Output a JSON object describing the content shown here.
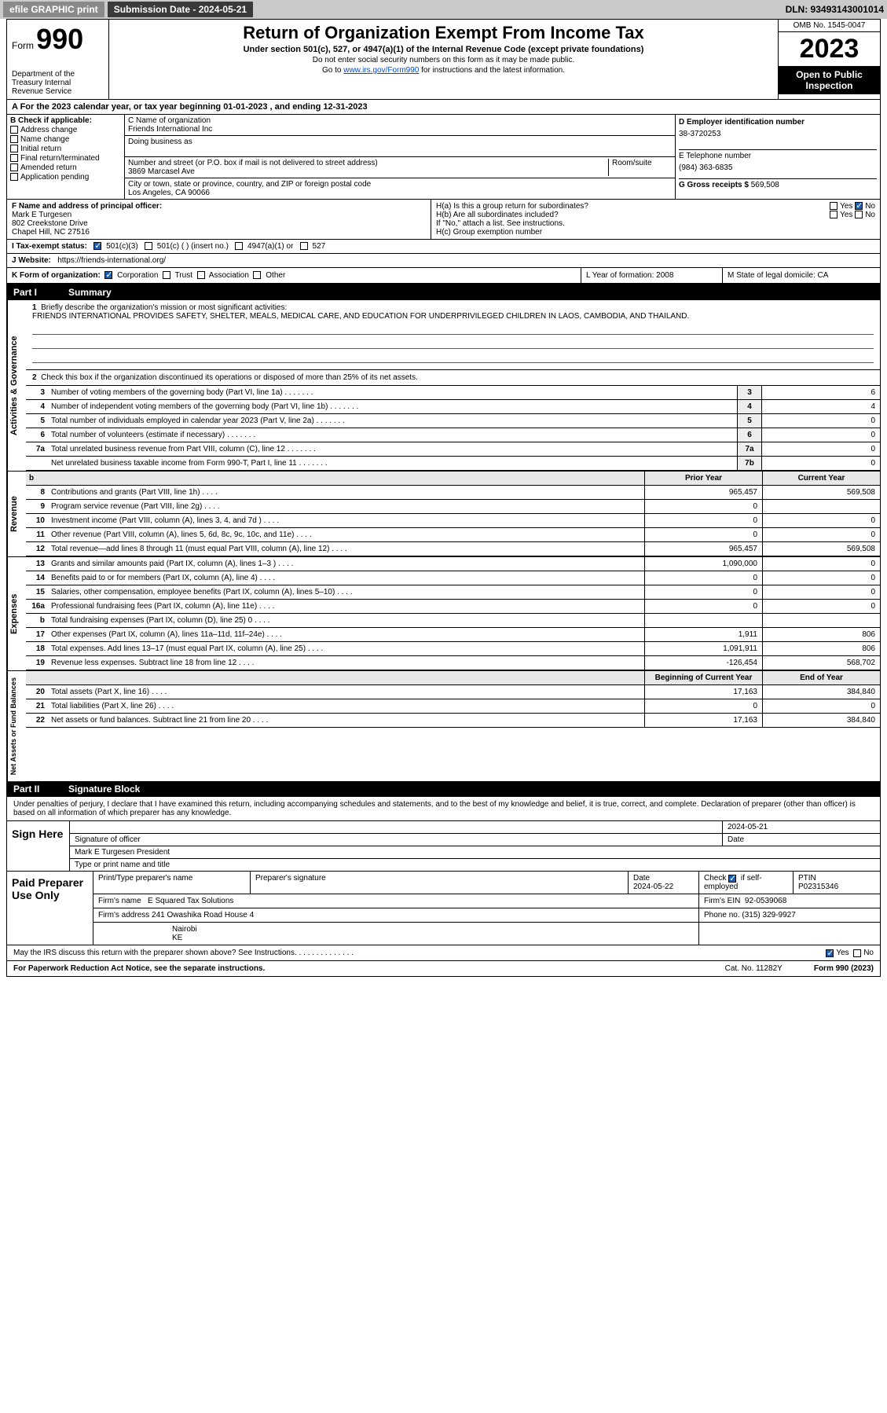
{
  "topbar": {
    "efile": "efile GRAPHIC print",
    "sub_label": "Submission Date - 2024-05-21",
    "dln": "DLN: 93493143001014"
  },
  "header": {
    "form_label": "Form",
    "form_number": "990",
    "title": "Return of Organization Exempt From Income Tax",
    "subtitle": "Under section 501(c), 527, or 4947(a)(1) of the Internal Revenue Code (except private foundations)",
    "note1": "Do not enter social security numbers on this form as it may be made public.",
    "note2_prefix": "Go to ",
    "note2_link": "www.irs.gov/Form990",
    "note2_suffix": " for instructions and the latest information.",
    "omb": "OMB No. 1545-0047",
    "year": "2023",
    "open_public": "Open to Public Inspection",
    "dept": "Department of the Treasury Internal Revenue Service"
  },
  "period": "A For the 2023 calendar year, or tax year beginning 01-01-2023   , and ending 12-31-2023",
  "box_b": {
    "label": "B Check if applicable:",
    "opts": [
      "Address change",
      "Name change",
      "Initial return",
      "Final return/terminated",
      "Amended return",
      "Application pending"
    ]
  },
  "box_c": {
    "name_label": "C Name of organization",
    "name": "Friends International Inc",
    "dba_label": "Doing business as",
    "addr_label": "Number and street (or P.O. box if mail is not delivered to street address)",
    "room_label": "Room/suite",
    "addr": "3869 Marcasel Ave",
    "city_label": "City or town, state or province, country, and ZIP or foreign postal code",
    "city": "Los Angeles, CA  90066"
  },
  "box_d": {
    "ein_label": "D Employer identification number",
    "ein": "38-3720253",
    "phone_label": "E Telephone number",
    "phone": "(984) 363-6835",
    "gross_label": "G Gross receipts $",
    "gross": "569,508"
  },
  "officer": {
    "label": "F Name and address of principal officer:",
    "name": "Mark E Turgesen",
    "addr1": "802 Creekstone Drive",
    "addr2": "Chapel Hill, NC  27516"
  },
  "box_h": {
    "ha": "H(a) Is this a group return for subordinates?",
    "ha_yes": "Yes",
    "ha_no": "No",
    "hb": "H(b) Are all subordinates included?",
    "hb_note": "If \"No,\" attach a list. See instructions.",
    "hc": "H(c) Group exemption number"
  },
  "tax_status": {
    "label": "I   Tax-exempt status:",
    "o1": "501(c)(3)",
    "o2": "501(c) (  ) (insert no.)",
    "o3": "4947(a)(1) or",
    "o4": "527"
  },
  "website": {
    "label": "J   Website:",
    "url": "https://friends-international.org/"
  },
  "klm": {
    "k": "K Form of organization:",
    "k_opts": [
      "Corporation",
      "Trust",
      "Association",
      "Other"
    ],
    "l": "L Year of formation: 2008",
    "m": "M State of legal domicile: CA"
  },
  "part1": {
    "hdr": "Part I",
    "title": "Summary",
    "q1": "Briefly describe the organization's mission or most significant activities:",
    "mission": "FRIENDS INTERNATIONAL PROVIDES SAFETY, SHELTER, MEALS, MEDICAL CARE, AND EDUCATION FOR UNDERPRIVILEGED CHILDREN IN LAOS, CAMBODIA, AND THAILAND.",
    "q2": "Check this box      if the organization discontinued its operations or disposed of more than 25% of its net assets.",
    "lines_gov": [
      {
        "n": "3",
        "t": "Number of voting members of the governing body (Part VI, line 1a)",
        "lbl": "3",
        "v": "6"
      },
      {
        "n": "4",
        "t": "Number of independent voting members of the governing body (Part VI, line 1b)",
        "lbl": "4",
        "v": "4"
      },
      {
        "n": "5",
        "t": "Total number of individuals employed in calendar year 2023 (Part V, line 2a)",
        "lbl": "5",
        "v": "0"
      },
      {
        "n": "6",
        "t": "Total number of volunteers (estimate if necessary)",
        "lbl": "6",
        "v": "0"
      },
      {
        "n": "7a",
        "t": "Total unrelated business revenue from Part VIII, column (C), line 12",
        "lbl": "7a",
        "v": "0"
      },
      {
        "n": "",
        "t": "Net unrelated business taxable income from Form 990-T, Part I, line 11",
        "lbl": "7b",
        "v": "0"
      }
    ]
  },
  "revenue": {
    "side": "Revenue",
    "hdr_prior": "Prior Year",
    "hdr_curr": "Current Year",
    "lines": [
      {
        "n": "8",
        "t": "Contributions and grants (Part VIII, line 1h)",
        "p": "965,457",
        "c": "569,508"
      },
      {
        "n": "9",
        "t": "Program service revenue (Part VIII, line 2g)",
        "p": "0",
        "c": ""
      },
      {
        "n": "10",
        "t": "Investment income (Part VIII, column (A), lines 3, 4, and 7d )",
        "p": "0",
        "c": "0"
      },
      {
        "n": "11",
        "t": "Other revenue (Part VIII, column (A), lines 5, 6d, 8c, 9c, 10c, and 11e)",
        "p": "0",
        "c": "0"
      },
      {
        "n": "12",
        "t": "Total revenue—add lines 8 through 11 (must equal Part VIII, column (A), line 12)",
        "p": "965,457",
        "c": "569,508"
      }
    ]
  },
  "expenses": {
    "side": "Expenses",
    "lines": [
      {
        "n": "13",
        "t": "Grants and similar amounts paid (Part IX, column (A), lines 1–3 )",
        "p": "1,090,000",
        "c": "0"
      },
      {
        "n": "14",
        "t": "Benefits paid to or for members (Part IX, column (A), line 4)",
        "p": "0",
        "c": "0"
      },
      {
        "n": "15",
        "t": "Salaries, other compensation, employee benefits (Part IX, column (A), lines 5–10)",
        "p": "0",
        "c": "0"
      },
      {
        "n": "16a",
        "t": "Professional fundraising fees (Part IX, column (A), line 11e)",
        "p": "0",
        "c": "0"
      },
      {
        "n": "b",
        "t": "Total fundraising expenses (Part IX, column (D), line 25) 0",
        "p": "",
        "c": ""
      },
      {
        "n": "17",
        "t": "Other expenses (Part IX, column (A), lines 11a–11d, 11f–24e)",
        "p": "1,911",
        "c": "806"
      },
      {
        "n": "18",
        "t": "Total expenses. Add lines 13–17 (must equal Part IX, column (A), line 25)",
        "p": "1,091,911",
        "c": "806"
      },
      {
        "n": "19",
        "t": "Revenue less expenses. Subtract line 18 from line 12",
        "p": "-126,454",
        "c": "568,702"
      }
    ]
  },
  "netassets": {
    "side": "Net Assets or Fund Balances",
    "hdr_begin": "Beginning of Current Year",
    "hdr_end": "End of Year",
    "lines": [
      {
        "n": "20",
        "t": "Total assets (Part X, line 16)",
        "p": "17,163",
        "c": "384,840"
      },
      {
        "n": "21",
        "t": "Total liabilities (Part X, line 26)",
        "p": "0",
        "c": "0"
      },
      {
        "n": "22",
        "t": "Net assets or fund balances. Subtract line 21 from line 20",
        "p": "17,163",
        "c": "384,840"
      }
    ]
  },
  "part2": {
    "hdr": "Part II",
    "title": "Signature Block",
    "declare": "Under penalties of perjury, I declare that I have examined this return, including accompanying schedules and statements, and to the best of my knowledge and belief, it is true, correct, and complete. Declaration of preparer (other than officer) is based on all information of which preparer has any knowledge."
  },
  "sign": {
    "label": "Sign Here",
    "sig_label": "Signature of officer",
    "date": "2024-05-21",
    "date_label": "Date",
    "name_line": "Mark E Turgesen President",
    "type_label": "Type or print name and title"
  },
  "prep": {
    "label": "Paid Preparer Use Only",
    "r1": {
      "c1l": "Print/Type preparer's name",
      "c2l": "Preparer's signature",
      "c3l": "Date",
      "c3v": "2024-05-22",
      "c4l": "Check",
      "c4v": "if self-employed",
      "c5l": "PTIN",
      "c5v": "P02315346"
    },
    "r2": {
      "c1l": "Firm's name",
      "c1v": "E Squared Tax Solutions",
      "c2l": "Firm's EIN",
      "c2v": "92-0539068"
    },
    "r3": {
      "c1l": "Firm's address",
      "c1v": "241 Owashika Road House 4",
      "c2l": "Phone no.",
      "c2v": "(315) 329-9927"
    },
    "r4": {
      "c1v": "Nairobi",
      "c2v": "KE"
    }
  },
  "discuss": "May the IRS discuss this return with the preparer shown above? See Instructions.",
  "discuss_yes": "Yes",
  "discuss_no": "No",
  "footer": {
    "left": "For Paperwork Reduction Act Notice, see the separate instructions.",
    "mid": "Cat. No. 11282Y",
    "right": "Form 990 (2023)"
  },
  "side_labels": {
    "gov": "Activities & Governance"
  }
}
